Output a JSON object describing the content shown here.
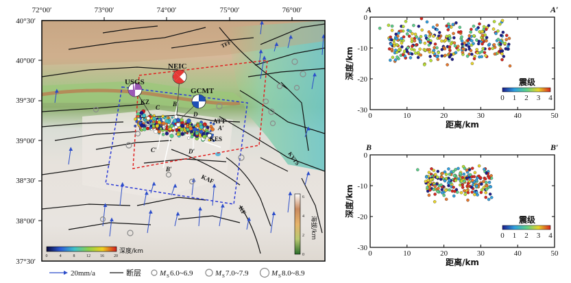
{
  "map": {
    "lon_labels": [
      "72°00′",
      "73°00′",
      "74°00′",
      "75°00′",
      "76°00′"
    ],
    "lat_labels": [
      "40°30′",
      "40°00′",
      "39°30′",
      "39°00′",
      "38°30′",
      "38°00′",
      "37°30′"
    ],
    "fault_labels": [
      "TFF",
      "KZ",
      "ATT",
      "KES",
      "KAF",
      "KF",
      "KYTS"
    ],
    "point_labels": {
      "A": "A",
      "A2": "A′",
      "B": "B",
      "B2": "B′",
      "C": "C",
      "C2": "C′",
      "D": "D",
      "D2": "D′"
    },
    "mechanisms": [
      {
        "name": "USGS",
        "color": "#9b59b6"
      },
      {
        "name": "NEIC",
        "color": "#e53935"
      },
      {
        "name": "GCMT",
        "color": "#1e4fb5"
      }
    ],
    "depth_bar": {
      "label": "深度/km",
      "ticks": [
        "0",
        "4",
        "8",
        "12",
        "16",
        "20"
      ]
    },
    "elevation_bar": {
      "label": "海拔/km",
      "ticks": [
        "0",
        "2",
        "4",
        "6"
      ]
    }
  },
  "legend": {
    "velocity": "20mm/a",
    "fault": "断层",
    "m1": "6.0~6.9",
    "m2": "7.0~7.9",
    "m3": "8.0~8.9",
    "m_prefix": "M",
    "m_sub": "S"
  },
  "chart_data": [
    {
      "type": "scatter",
      "id": "AA",
      "start_label": "A",
      "end_label": "A′",
      "xlabel": "距离/km",
      "ylabel": "深度/km",
      "xlim": [
        0,
        50
      ],
      "ylim": [
        -30,
        0
      ],
      "xticks": [
        0,
        10,
        20,
        30,
        40,
        50
      ],
      "yticks": [
        0,
        -10,
        -20,
        -30
      ],
      "colorbar": {
        "title": "震级",
        "ticks": [
          0,
          1,
          2,
          3,
          4
        ]
      },
      "seed": 7,
      "n": 330,
      "x_center": [
        5,
        38
      ],
      "x_spread": 40,
      "y_center": -8,
      "y_spread": 5
    },
    {
      "type": "scatter",
      "id": "BB",
      "start_label": "B",
      "end_label": "B′",
      "xlabel": "距离/km",
      "ylabel": "深度/km",
      "xlim": [
        0,
        50
      ],
      "ylim": [
        -30,
        0
      ],
      "xticks": [
        0,
        10,
        20,
        30,
        40,
        50
      ],
      "yticks": [
        0,
        -10,
        -20,
        -30
      ],
      "colorbar": {
        "title": "震级",
        "ticks": [
          0,
          1,
          2,
          3,
          4
        ]
      },
      "seed": 13,
      "n": 230,
      "x_center": [
        15,
        33
      ],
      "x_spread": 18,
      "y_center": -9,
      "y_spread": 4
    }
  ]
}
